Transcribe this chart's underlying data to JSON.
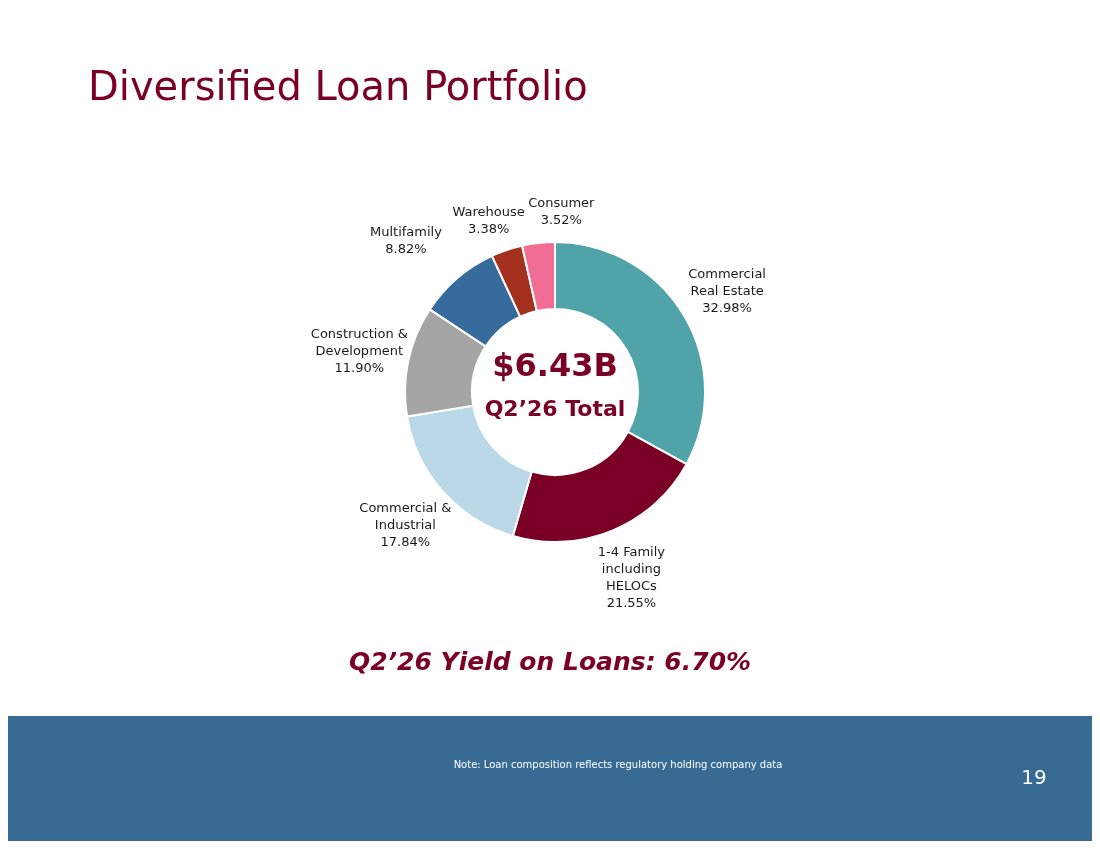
{
  "chart_data": {
    "type": "donut",
    "title": "Diversified Loan Portfolio",
    "categories": [
      "Commercial Real Estate",
      "1-4 Family including HELOCs",
      "Commercial & Industrial",
      "Construction & Development",
      "Multifamily",
      "Warehouse",
      "Consumer"
    ],
    "values": [
      32.98,
      21.55,
      17.84,
      11.9,
      8.82,
      3.38,
      3.52
    ],
    "value_labels": [
      "32.98%",
      "21.55%",
      "17.84%",
      "11.90%",
      "8.82%",
      "3.38%",
      "3.52%"
    ],
    "colors": [
      "#4fa3a9",
      "#7a0026",
      "#bad8e8",
      "#a5a5a5",
      "#366b9c",
      "#a4301e",
      "#f26d93"
    ],
    "annotations": [
      "$6.43B",
      "Q2’26 Total",
      "Q2’26 Yield on Loans: 6.70%",
      "Note: Loan composition reflects regulatory holding company data",
      "19"
    ]
  }
}
